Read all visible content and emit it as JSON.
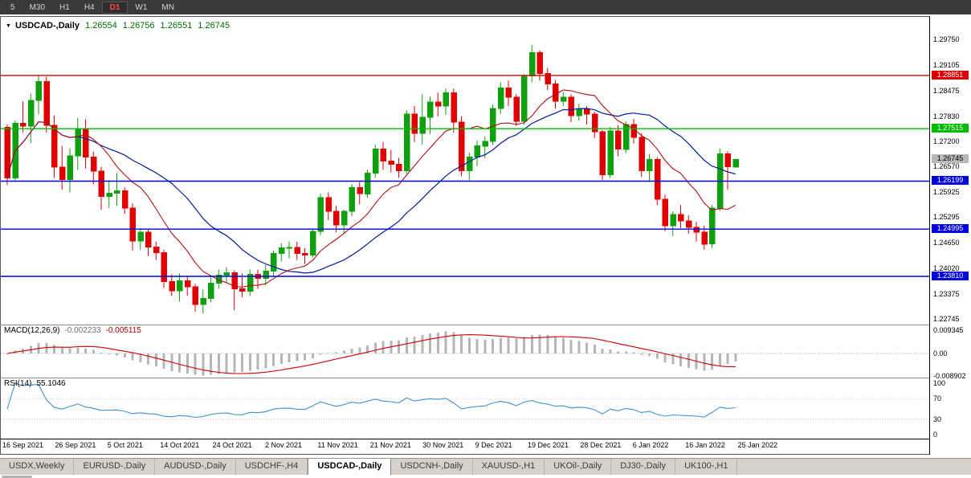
{
  "toolbar": {
    "timeframes": [
      "5",
      "M30",
      "H1",
      "H4",
      "D1",
      "W1",
      "MN"
    ],
    "active_index": 4
  },
  "chart_data": {
    "type": "candlestick",
    "title": "USDCAD-,Daily",
    "ohlc_display": {
      "open": "1.26554",
      "high": "1.26756",
      "low": "1.26551",
      "close": "1.26745"
    },
    "y_ticks": [
      "1.29750",
      "1.29105",
      "1.28475",
      "1.27830",
      "1.27200",
      "1.26570",
      "1.25925",
      "1.25295",
      "1.24650",
      "1.24020",
      "1.23375",
      "1.22745"
    ],
    "y_range": [
      1.226,
      1.303
    ],
    "x_labels": [
      "16 Sep 2021",
      "26 Sep 2021",
      "5 Oct 2021",
      "14 Oct 2021",
      "24 Oct 2021",
      "2 Nov 2021",
      "11 Nov 2021",
      "21 Nov 2021",
      "30 Nov 2021",
      "9 Dec 2021",
      "19 Dec 2021",
      "28 Dec 2021",
      "6 Jan 2022",
      "16 Jan 2022",
      "25 Jan 2022"
    ],
    "levels": [
      {
        "price": 1.28851,
        "label": "1.28851",
        "color": "#dd0000"
      },
      {
        "price": 1.27515,
        "label": "1.27515",
        "color": "#00bb00"
      },
      {
        "price": 1.26199,
        "label": "1.26199",
        "color": "#0000dd"
      },
      {
        "price": 1.24995,
        "label": "1.24995",
        "color": "#0000dd"
      },
      {
        "price": 1.2381,
        "label": "1.23810",
        "color": "#0000dd"
      }
    ],
    "current_price": {
      "value": 1.26745,
      "label": "1.26745",
      "color": "#b8b8b8"
    },
    "colors": {
      "bull": "#0ea00e",
      "bear": "#e00000",
      "ma_fast": "#b01010",
      "ma_slow": "#001a9e",
      "macd_hist": "#b6b6b6",
      "macd_signal": "#cc0000",
      "rsi_line": "#3f92d2"
    },
    "candles": [
      [
        "2021-09-16",
        1.2755,
        1.2762,
        1.261,
        1.2628
      ],
      [
        "2021-09-17",
        1.2628,
        1.2772,
        1.2622,
        1.2765
      ],
      [
        "2021-09-20",
        1.2765,
        1.282,
        1.2742,
        1.2758
      ],
      [
        "2021-09-21",
        1.2758,
        1.284,
        1.2715,
        1.2822
      ],
      [
        "2021-09-22",
        1.2822,
        1.2886,
        1.2788,
        1.287
      ],
      [
        "2021-09-23",
        1.287,
        1.2882,
        1.2742,
        1.276
      ],
      [
        "2021-09-24",
        1.276,
        1.2785,
        1.2628,
        1.2655
      ],
      [
        "2021-09-27",
        1.2655,
        1.2708,
        1.2598,
        1.2624
      ],
      [
        "2021-09-28",
        1.2624,
        1.2702,
        1.2592,
        1.2683
      ],
      [
        "2021-09-29",
        1.2683,
        1.2778,
        1.2648,
        1.275
      ],
      [
        "2021-09-30",
        1.275,
        1.2775,
        1.2652,
        1.268
      ],
      [
        "2021-10-01",
        1.268,
        1.2694,
        1.2612,
        1.2645
      ],
      [
        "2021-10-04",
        1.2645,
        1.2656,
        1.2548,
        1.2582
      ],
      [
        "2021-10-05",
        1.2582,
        1.2622,
        1.2552,
        1.259
      ],
      [
        "2021-10-06",
        1.259,
        1.264,
        1.2558,
        1.2596
      ],
      [
        "2021-10-07",
        1.2596,
        1.2604,
        1.2538,
        1.2552
      ],
      [
        "2021-10-08",
        1.2552,
        1.2564,
        1.2446,
        1.247
      ],
      [
        "2021-10-11",
        1.247,
        1.2502,
        1.2448,
        1.2492
      ],
      [
        "2021-10-12",
        1.2492,
        1.25,
        1.2432,
        1.2455
      ],
      [
        "2021-10-13",
        1.2455,
        1.2468,
        1.2422,
        1.244
      ],
      [
        "2021-10-14",
        1.244,
        1.2448,
        1.2352,
        1.2368
      ],
      [
        "2021-10-15",
        1.2368,
        1.2386,
        1.2332,
        1.2345
      ],
      [
        "2021-10-18",
        1.2345,
        1.2388,
        1.2318,
        1.237
      ],
      [
        "2021-10-19",
        1.237,
        1.2382,
        1.2332,
        1.2355
      ],
      [
        "2021-10-20",
        1.2355,
        1.2362,
        1.2292,
        1.231
      ],
      [
        "2021-10-21",
        1.231,
        1.2348,
        1.2288,
        1.2326
      ],
      [
        "2021-10-22",
        1.2326,
        1.2384,
        1.2316,
        1.2364
      ],
      [
        "2021-10-25",
        1.2364,
        1.2398,
        1.235,
        1.2384
      ],
      [
        "2021-10-26",
        1.2384,
        1.2404,
        1.2366,
        1.239
      ],
      [
        "2021-10-27",
        1.239,
        1.2396,
        1.2296,
        1.235
      ],
      [
        "2021-10-28",
        1.235,
        1.2388,
        1.2328,
        1.2344
      ],
      [
        "2021-10-29",
        1.2344,
        1.2398,
        1.2332,
        1.2386
      ],
      [
        "2021-11-01",
        1.2386,
        1.2398,
        1.235,
        1.2376
      ],
      [
        "2021-11-02",
        1.2376,
        1.241,
        1.2358,
        1.2394
      ],
      [
        "2021-11-03",
        1.2394,
        1.2446,
        1.2382,
        1.2438
      ],
      [
        "2021-11-04",
        1.2438,
        1.2464,
        1.2418,
        1.2452
      ],
      [
        "2021-11-05",
        1.2452,
        1.2468,
        1.2426,
        1.2454
      ],
      [
        "2021-11-08",
        1.2454,
        1.2468,
        1.2422,
        1.2438
      ],
      [
        "2021-11-09",
        1.2438,
        1.2452,
        1.2412,
        1.2434
      ],
      [
        "2021-11-10",
        1.2434,
        1.2498,
        1.2428,
        1.2494
      ],
      [
        "2021-11-11",
        1.2494,
        1.2588,
        1.2484,
        1.2578
      ],
      [
        "2021-11-12",
        1.2578,
        1.2592,
        1.2522,
        1.2544
      ],
      [
        "2021-11-15",
        1.2544,
        1.2558,
        1.2492,
        1.251
      ],
      [
        "2021-11-16",
        1.251,
        1.2548,
        1.2488,
        1.2544
      ],
      [
        "2021-11-17",
        1.2544,
        1.2612,
        1.2532,
        1.2604
      ],
      [
        "2021-11-18",
        1.2604,
        1.2618,
        1.2562,
        1.2588
      ],
      [
        "2021-11-19",
        1.2588,
        1.2648,
        1.2578,
        1.264
      ],
      [
        "2021-11-22",
        1.264,
        1.2712,
        1.2628,
        1.27
      ],
      [
        "2021-11-23",
        1.27,
        1.2718,
        1.2648,
        1.267
      ],
      [
        "2021-11-24",
        1.267,
        1.2698,
        1.2642,
        1.2662
      ],
      [
        "2021-11-25",
        1.2662,
        1.2678,
        1.2628,
        1.2646
      ],
      [
        "2021-11-26",
        1.2646,
        1.2798,
        1.2638,
        1.2788
      ],
      [
        "2021-11-29",
        1.2788,
        1.2808,
        1.2718,
        1.274
      ],
      [
        "2021-11-30",
        1.274,
        1.2838,
        1.2712,
        1.278
      ],
      [
        "2021-12-01",
        1.278,
        1.2832,
        1.2738,
        1.2818
      ],
      [
        "2021-12-02",
        1.2818,
        1.2842,
        1.2782,
        1.2808
      ],
      [
        "2021-12-03",
        1.2808,
        1.2852,
        1.2786,
        1.2842
      ],
      [
        "2021-12-06",
        1.2842,
        1.2852,
        1.2742,
        1.2768
      ],
      [
        "2021-12-07",
        1.2768,
        1.2782,
        1.2632,
        1.2646
      ],
      [
        "2021-12-08",
        1.2646,
        1.2692,
        1.2622,
        1.268
      ],
      [
        "2021-12-09",
        1.268,
        1.2722,
        1.2658,
        1.2708
      ],
      [
        "2021-12-10",
        1.2708,
        1.2732,
        1.2678,
        1.272
      ],
      [
        "2021-12-13",
        1.272,
        1.2812,
        1.271,
        1.2802
      ],
      [
        "2021-12-14",
        1.2802,
        1.2868,
        1.2788,
        1.2854
      ],
      [
        "2021-12-15",
        1.2854,
        1.2872,
        1.2808,
        1.283
      ],
      [
        "2021-12-16",
        1.283,
        1.2838,
        1.2758,
        1.277
      ],
      [
        "2021-12-17",
        1.277,
        1.2888,
        1.2762,
        1.2884
      ],
      [
        "2021-12-20",
        1.2884,
        1.2962,
        1.2868,
        1.2942
      ],
      [
        "2021-12-21",
        1.2942,
        1.2948,
        1.2872,
        1.289
      ],
      [
        "2021-12-22",
        1.289,
        1.2904,
        1.2848,
        1.2864
      ],
      [
        "2021-12-23",
        1.2864,
        1.2874,
        1.2802,
        1.282
      ],
      [
        "2021-12-24",
        1.282,
        1.2844,
        1.2808,
        1.283
      ],
      [
        "2021-12-27",
        1.283,
        1.2838,
        1.2768,
        1.2784
      ],
      [
        "2021-12-28",
        1.2784,
        1.2814,
        1.2772,
        1.28
      ],
      [
        "2021-12-29",
        1.28,
        1.2808,
        1.2762,
        1.2788
      ],
      [
        "2021-12-30",
        1.2788,
        1.2794,
        1.2728,
        1.2744
      ],
      [
        "2021-12-31",
        1.2744,
        1.2748,
        1.2622,
        1.2636
      ],
      [
        "2022-01-03",
        1.2636,
        1.2756,
        1.2628,
        1.2746
      ],
      [
        "2022-01-04",
        1.2746,
        1.276,
        1.2682,
        1.27
      ],
      [
        "2022-01-05",
        1.27,
        1.277,
        1.269,
        1.2762
      ],
      [
        "2022-01-06",
        1.2762,
        1.2776,
        1.2714,
        1.273
      ],
      [
        "2022-01-07",
        1.273,
        1.274,
        1.263,
        1.2646
      ],
      [
        "2022-01-10",
        1.2646,
        1.2688,
        1.2618,
        1.2674
      ],
      [
        "2022-01-11",
        1.2674,
        1.268,
        1.256,
        1.2574
      ],
      [
        "2022-01-12",
        1.2574,
        1.2586,
        1.2494,
        1.2508
      ],
      [
        "2022-01-13",
        1.2508,
        1.2544,
        1.2482,
        1.2536
      ],
      [
        "2022-01-14",
        1.2536,
        1.256,
        1.2502,
        1.252
      ],
      [
        "2022-01-17",
        1.252,
        1.2534,
        1.2488,
        1.2504
      ],
      [
        "2022-01-18",
        1.2504,
        1.2518,
        1.2468,
        1.2492
      ],
      [
        "2022-01-19",
        1.2492,
        1.2508,
        1.2448,
        1.2462
      ],
      [
        "2022-01-20",
        1.2462,
        1.256,
        1.2452,
        1.2552
      ],
      [
        "2022-01-21",
        1.2552,
        1.2702,
        1.2545,
        1.2688
      ],
      [
        "2022-01-24",
        1.2688,
        1.2695,
        1.2598,
        1.2656
      ],
      [
        "2022-01-25",
        1.26554,
        1.26756,
        1.26551,
        1.26745
      ]
    ]
  },
  "panels": {
    "macd": {
      "name": "MACD(12,26,9)",
      "main": "-0.002233",
      "signal": "-0.005115",
      "ticks": [
        "0.009345",
        "0.00",
        "-0.008902"
      ]
    },
    "rsi": {
      "name": "RSI(14)",
      "value": "55.1046",
      "ticks": [
        "100",
        "70",
        "30",
        "0"
      ]
    }
  },
  "tabs": {
    "items": [
      {
        "label": "USDX,Weekly"
      },
      {
        "label": "EURUSD-,Daily"
      },
      {
        "label": "AUDUSD-,Daily"
      },
      {
        "label": "USDCHF-,H4"
      },
      {
        "label": "USDCAD-,Daily"
      },
      {
        "label": "USDCNH-,Daily"
      },
      {
        "label": "XAUUSD-,H1"
      },
      {
        "label": "UKOil-,Daily"
      },
      {
        "label": "DJ30-,Daily"
      },
      {
        "label": "UK100-,H1"
      }
    ],
    "active_index": 4
  }
}
